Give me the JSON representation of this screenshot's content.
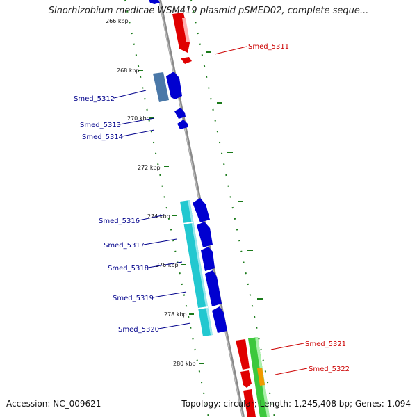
{
  "title": "Sinorhizobium medicae WSM419 plasmid pSMED02, complete seque...",
  "accession": "Accession: NC_009621",
  "summary": "Topology: circular; Length: 1,245,408 bp; Genes: 1,094",
  "tick_labels": [
    "266 kbp",
    "268 kbp",
    "270 kbp",
    "272 kbp",
    "274 kbp",
    "276 kbp",
    "278 kbp",
    "280 kbp"
  ],
  "genes_left": [
    "Smed_5312",
    "Smed_5313",
    "Smed_5314",
    "Smed_5316",
    "Smed_5317",
    "Smed_5318",
    "Smed_5319",
    "Smed_5320"
  ],
  "genes_right": [
    "Smed_5311",
    "Smed_5321",
    "Smed_5322"
  ],
  "colors": {
    "backbone": "#8a8a8a",
    "reverse_gene": "#e00000",
    "forward_gene": "#0000d0",
    "cyan_feature": "#22c8d0",
    "steel_feature": "#4a78a8",
    "green_feature": "#3cc83c",
    "orange_feature": "#f09a00",
    "label_forward": "#00008b",
    "label_reverse": "#cc0000",
    "tick_dots": "#1a7a1a"
  }
}
